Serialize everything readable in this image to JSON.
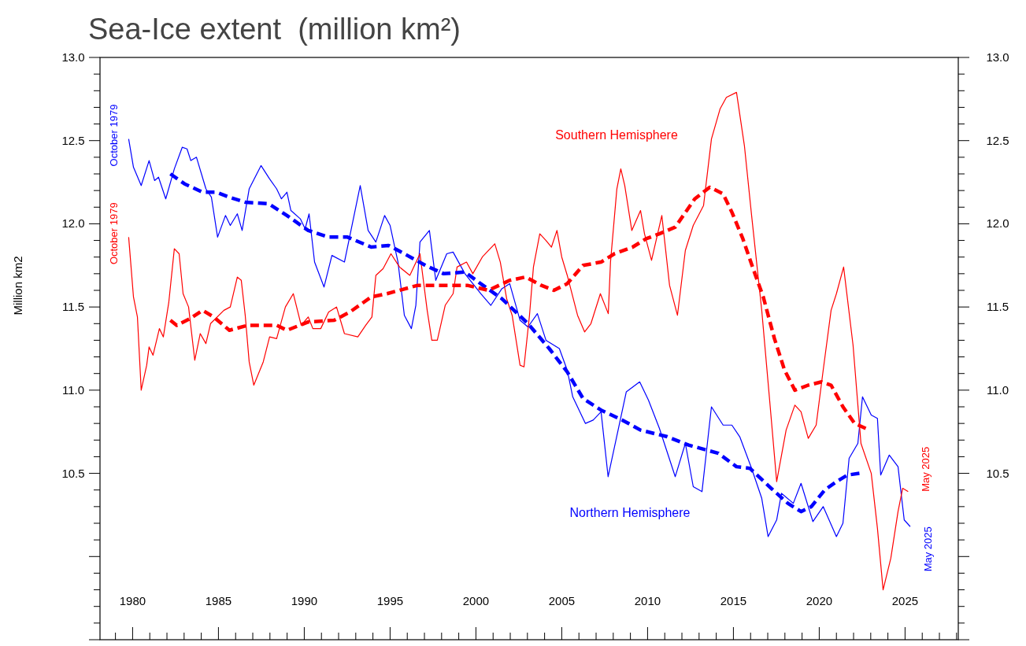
{
  "chart_data": {
    "type": "line",
    "title": "Sea-Ice extent  (million km²)",
    "ylabel": "Million km2",
    "xlim": [
      1978.1,
      2028.1
    ],
    "ylim": [
      9.5,
      13.0
    ],
    "y2lim": [
      9.5,
      13.0
    ],
    "xticks": [
      {
        "value": 1979,
        "label": null
      },
      1980,
      {
        "value": 1981,
        "label": null
      },
      {
        "value": 1982,
        "label": null
      },
      {
        "value": 1983,
        "label": null
      },
      {
        "value": 1984,
        "label": null
      },
      1985,
      {
        "value": 1986,
        "label": null
      },
      {
        "value": 1987,
        "label": null
      },
      {
        "value": 1988,
        "label": null
      },
      {
        "value": 1989,
        "label": null
      },
      1990,
      {
        "value": 1991,
        "label": null
      },
      {
        "value": 1992,
        "label": null
      },
      {
        "value": 1993,
        "label": null
      },
      {
        "value": 1994,
        "label": null
      },
      1995,
      {
        "value": 1996,
        "label": null
      },
      {
        "value": 1997,
        "label": null
      },
      {
        "value": 1998,
        "label": null
      },
      {
        "value": 1999,
        "label": null
      },
      2000,
      {
        "value": 2001,
        "label": null
      },
      {
        "value": 2002,
        "label": null
      },
      {
        "value": 2003,
        "label": null
      },
      {
        "value": 2004,
        "label": null
      },
      2005,
      {
        "value": 2006,
        "label": null
      },
      {
        "value": 2007,
        "label": null
      },
      {
        "value": 2008,
        "label": null
      },
      {
        "value": 2009,
        "label": null
      },
      2010,
      {
        "value": 2011,
        "label": null
      },
      {
        "value": 2012,
        "label": null
      },
      {
        "value": 2013,
        "label": null
      },
      {
        "value": 2014,
        "label": null
      },
      2015,
      {
        "value": 2016,
        "label": null
      },
      {
        "value": 2017,
        "label": null
      },
      {
        "value": 2018,
        "label": null
      },
      {
        "value": 2019,
        "label": null
      },
      2020,
      {
        "value": 2021,
        "label": null
      },
      {
        "value": 2022,
        "label": null
      },
      {
        "value": 2023,
        "label": null
      },
      {
        "value": 2024,
        "label": null
      },
      2025,
      {
        "value": 2026,
        "label": null
      },
      {
        "value": 2027,
        "label": null
      },
      {
        "value": 2028,
        "label": null
      }
    ],
    "yticks": [
      {
        "value": 9.5,
        "label": null
      },
      {
        "value": 9.6,
        "label": null
      },
      {
        "value": 9.7,
        "label": null
      },
      {
        "value": 9.8,
        "label": null
      },
      {
        "value": 9.9,
        "label": null
      },
      {
        "value": 10.0,
        "label": null
      },
      {
        "value": 10.1,
        "label": null
      },
      {
        "value": 10.2,
        "label": null
      },
      {
        "value": 10.3,
        "label": null
      },
      {
        "value": 10.4,
        "label": null
      },
      10.5,
      {
        "value": 10.6,
        "label": null
      },
      {
        "value": 10.7,
        "label": null
      },
      {
        "value": 10.8,
        "label": null
      },
      {
        "value": 10.9,
        "label": null
      },
      {
        "value": 11.0,
        "label": "11.0"
      },
      {
        "value": 11.1,
        "label": null
      },
      {
        "value": 11.2,
        "label": null
      },
      {
        "value": 11.3,
        "label": null
      },
      {
        "value": 11.4,
        "label": null
      },
      11.5,
      {
        "value": 11.6,
        "label": null
      },
      {
        "value": 11.7,
        "label": null
      },
      {
        "value": 11.8,
        "label": null
      },
      {
        "value": 11.9,
        "label": null
      },
      {
        "value": 12.0,
        "label": "12.0"
      },
      {
        "value": 12.1,
        "label": null
      },
      {
        "value": 12.2,
        "label": null
      },
      {
        "value": 12.3,
        "label": null
      },
      {
        "value": 12.4,
        "label": null
      },
      12.5,
      {
        "value": 12.6,
        "label": null
      },
      {
        "value": 12.7,
        "label": null
      },
      {
        "value": 12.8,
        "label": null
      },
      {
        "value": 12.9,
        "label": null
      },
      {
        "value": 13.0,
        "label": "13.0"
      }
    ],
    "y2ticks": [
      {
        "value": 9.5,
        "label": null
      },
      {
        "value": 9.6,
        "label": null
      },
      {
        "value": 9.7,
        "label": null
      },
      {
        "value": 9.8,
        "label": null
      },
      {
        "value": 9.9,
        "label": null
      },
      {
        "value": 10.0,
        "label": null
      },
      {
        "value": 10.1,
        "label": null
      },
      {
        "value": 10.2,
        "label": null
      },
      {
        "value": 10.3,
        "label": null
      },
      {
        "value": 10.4,
        "label": null
      },
      10.5,
      {
        "value": 10.6,
        "label": null
      },
      {
        "value": 10.7,
        "label": null
      },
      {
        "value": 10.8,
        "label": null
      },
      {
        "value": 10.9,
        "label": null
      },
      {
        "value": 11.0,
        "label": "11.0"
      },
      {
        "value": 11.1,
        "label": null
      },
      {
        "value": 11.2,
        "label": null
      },
      {
        "value": 11.3,
        "label": null
      },
      {
        "value": 11.4,
        "label": null
      },
      11.5,
      {
        "value": 11.6,
        "label": null
      },
      {
        "value": 11.7,
        "label": null
      },
      {
        "value": 11.8,
        "label": null
      },
      {
        "value": 11.9,
        "label": null
      },
      {
        "value": 12.0,
        "label": "12.0"
      },
      {
        "value": 12.1,
        "label": null
      },
      {
        "value": 12.2,
        "label": null
      },
      {
        "value": 12.3,
        "label": null
      },
      {
        "value": 12.4,
        "label": null
      },
      12.5,
      {
        "value": 12.6,
        "label": null
      },
      {
        "value": 12.7,
        "label": null
      },
      {
        "value": 12.8,
        "label": null
      },
      {
        "value": 12.9,
        "label": null
      },
      {
        "value": 13.0,
        "label": "13.0"
      }
    ],
    "grid": false,
    "marker": "none",
    "series": [
      {
        "name": "Northern Hemisphere",
        "color": "#0000ff",
        "line_style": "solid",
        "x": [
          1979.77,
          1980.05,
          1980.5,
          1980.96,
          1981.28,
          1981.51,
          1981.93,
          1982.43,
          1982.89,
          1983.17,
          1983.39,
          1983.72,
          1984.27,
          1984.59,
          1984.95,
          1985.41,
          1985.69,
          1986.1,
          1986.38,
          1986.79,
          1987.48,
          1987.98,
          1988.39,
          1988.67,
          1988.99,
          1989.22,
          1989.77,
          1990.05,
          1990.28,
          1990.6,
          1991.15,
          1991.61,
          1992.34,
          1993.26,
          1993.72,
          1994.17,
          1994.68,
          1995.0,
          1995.46,
          1995.83,
          1996.24,
          1996.5,
          1996.74,
          1997.29,
          1997.66,
          1998.3,
          1998.67,
          1999.36,
          2000.28,
          2000.87,
          2001.51,
          2001.97,
          2002.57,
          2003.03,
          2003.58,
          2004.08,
          2004.86,
          2005.32,
          2005.64,
          2006.38,
          2006.83,
          2007.29,
          2007.7,
          2008.76,
          2009.54,
          2010.05,
          2010.69,
          2011.61,
          2012.2,
          2012.66,
          2013.17,
          2013.72,
          2014.4,
          2014.91,
          2015.37,
          2016.06,
          2016.65,
          2017.02,
          2017.52,
          2017.8,
          2018.49,
          2018.94,
          2019.63,
          2020.23,
          2021.0,
          2021.38,
          2021.74,
          2022.25,
          2022.52,
          2023.03,
          2023.39,
          2023.58,
          2024.08,
          2024.59,
          2024.95,
          2025.3
        ],
        "values": [
          12.51,
          12.34,
          12.23,
          12.38,
          12.26,
          12.28,
          12.15,
          12.33,
          12.46,
          12.45,
          12.38,
          12.4,
          12.21,
          12.16,
          11.92,
          12.05,
          11.99,
          12.06,
          11.96,
          12.21,
          12.35,
          12.27,
          12.21,
          12.15,
          12.19,
          12.08,
          12.03,
          11.97,
          12.06,
          11.77,
          11.62,
          11.81,
          11.77,
          12.23,
          11.96,
          11.89,
          12.05,
          11.99,
          11.77,
          11.45,
          11.37,
          11.51,
          11.89,
          11.96,
          11.66,
          11.82,
          11.83,
          11.7,
          11.58,
          11.51,
          11.61,
          11.64,
          11.42,
          11.38,
          11.46,
          11.3,
          11.25,
          11.12,
          10.96,
          10.8,
          10.82,
          10.87,
          10.48,
          10.99,
          11.05,
          10.94,
          10.77,
          10.48,
          10.68,
          10.42,
          10.39,
          10.9,
          10.79,
          10.79,
          10.72,
          10.53,
          10.35,
          10.12,
          10.22,
          10.38,
          10.32,
          10.44,
          10.21,
          10.3,
          10.12,
          10.2,
          10.59,
          10.68,
          10.96,
          10.85,
          10.83,
          10.49,
          10.61,
          10.54,
          10.22,
          10.18
        ]
      },
      {
        "name": "Southern Hemisphere",
        "color": "#ff0000",
        "line_style": "solid",
        "x": [
          1979.77,
          1980.05,
          1980.28,
          1980.5,
          1980.82,
          1980.96,
          1981.19,
          1981.56,
          1981.79,
          1982.11,
          1982.43,
          1982.71,
          1982.94,
          1983.26,
          1983.62,
          1983.94,
          1984.27,
          1984.54,
          1985.32,
          1985.69,
          1986.1,
          1986.33,
          1986.56,
          1986.79,
          1987.06,
          1987.61,
          1987.98,
          1988.39,
          1988.9,
          1989.36,
          1989.82,
          1990.23,
          1990.5,
          1990.96,
          1991.42,
          1991.88,
          1992.34,
          1993.12,
          1993.58,
          1993.94,
          1994.17,
          1994.59,
          1995.05,
          1995.55,
          1996.15,
          1996.74,
          1997.16,
          1997.43,
          1997.75,
          1998.21,
          1998.67,
          1998.9,
          1999.45,
          1999.82,
          2000.37,
          2000.64,
          2001.1,
          2001.42,
          2001.79,
          2002.11,
          2002.57,
          2002.8,
          2003.12,
          2003.35,
          2003.72,
          2004.08,
          2004.4,
          2004.72,
          2005.0,
          2005.32,
          2005.92,
          2006.33,
          2006.7,
          2007.25,
          2007.71,
          2007.84,
          2008.21,
          2008.44,
          2008.67,
          2009.08,
          2009.59,
          2009.82,
          2010.23,
          2010.83,
          2011.28,
          2011.74,
          2012.2,
          2012.66,
          2013.26,
          2013.72,
          2014.22,
          2014.59,
          2015.18,
          2015.64,
          2016.06,
          2016.65,
          2017.11,
          2017.52,
          2018.07,
          2018.58,
          2018.94,
          2019.36,
          2019.82,
          2020.23,
          2020.69,
          2021.0,
          2021.42,
          2021.97,
          2022.43,
          2023.03,
          2023.39,
          2023.72,
          2024.17,
          2024.59,
          2024.86,
          2025.18
        ],
        "values": [
          11.92,
          11.56,
          11.44,
          11.0,
          11.15,
          11.26,
          11.21,
          11.37,
          11.32,
          11.53,
          11.85,
          11.82,
          11.58,
          11.5,
          11.18,
          11.34,
          11.28,
          11.4,
          11.48,
          11.5,
          11.68,
          11.66,
          11.45,
          11.17,
          11.03,
          11.17,
          11.32,
          11.31,
          11.5,
          11.58,
          11.39,
          11.44,
          11.37,
          11.37,
          11.47,
          11.5,
          11.34,
          11.32,
          11.39,
          11.44,
          11.69,
          11.73,
          11.82,
          11.74,
          11.69,
          11.82,
          11.48,
          11.3,
          11.3,
          11.51,
          11.58,
          11.74,
          11.77,
          11.7,
          11.8,
          11.83,
          11.88,
          11.77,
          11.55,
          11.45,
          11.15,
          11.14,
          11.45,
          11.74,
          11.94,
          11.9,
          11.86,
          11.96,
          11.8,
          11.69,
          11.45,
          11.35,
          11.4,
          11.58,
          11.46,
          11.77,
          12.21,
          12.33,
          12.23,
          11.96,
          12.08,
          11.94,
          11.78,
          12.05,
          11.63,
          11.45,
          11.84,
          11.99,
          12.11,
          12.51,
          12.69,
          12.76,
          12.79,
          12.47,
          12.05,
          11.48,
          10.94,
          10.45,
          10.76,
          10.91,
          10.87,
          10.71,
          10.79,
          11.12,
          11.48,
          11.58,
          11.74,
          11.27,
          10.68,
          10.5,
          10.17,
          9.8,
          9.99,
          10.27,
          10.41,
          10.39
        ]
      },
      {
        "color": "#0000ff",
        "line_style": "dashed",
        "x": [
          1982.2,
          1983.03,
          1984.08,
          1984.86,
          1985.64,
          1986.56,
          1987.94,
          1988.99,
          1990.23,
          1991.42,
          1992.52,
          1993.9,
          1994.91,
          1995.83,
          1997.06,
          1998.12,
          1999.36,
          2000.41,
          2001.51,
          2003.03,
          2004.27,
          2005.32,
          2006.24,
          2007.29,
          2008.53,
          2009.59,
          2011.15,
          2012.39,
          2014.13,
          2015.18,
          2015.96,
          2017.2,
          2018.17,
          2018.94,
          2019.54,
          2020.32,
          2021.0,
          2021.65,
          2022.34
        ],
        "values": [
          12.3,
          12.24,
          12.19,
          12.19,
          12.16,
          12.13,
          12.12,
          12.05,
          11.96,
          11.92,
          11.92,
          11.86,
          11.87,
          11.82,
          11.75,
          11.7,
          11.71,
          11.63,
          11.55,
          11.4,
          11.25,
          11.11,
          10.95,
          10.88,
          10.82,
          10.76,
          10.72,
          10.67,
          10.62,
          10.54,
          10.53,
          10.41,
          10.32,
          10.27,
          10.3,
          10.4,
          10.45,
          10.49,
          10.5
        ]
      },
      {
        "color": "#ff0000",
        "line_style": "dashed",
        "x": [
          1982.2,
          1982.57,
          1983.35,
          1984.08,
          1984.72,
          1985.64,
          1986.7,
          1988.39,
          1988.99,
          1990.23,
          1991.74,
          1992.66,
          1993.9,
          1994.82,
          1996.61,
          1998.58,
          1999.5,
          2000.73,
          2001.97,
          2002.89,
          2003.81,
          2004.54,
          2005.32,
          2006.24,
          2007.29,
          2008.07,
          2009.13,
          2009.91,
          2010.69,
          2011.61,
          2012.75,
          2013.62,
          2014.4,
          2014.91,
          2015.55,
          2016.15,
          2016.74,
          2017.39,
          2017.98,
          2018.58,
          2019.36,
          2020.14,
          2020.69,
          2021.38,
          2022.06,
          2022.71
        ],
        "values": [
          11.42,
          11.39,
          11.43,
          11.48,
          11.44,
          11.36,
          11.39,
          11.39,
          11.36,
          11.41,
          11.42,
          11.47,
          11.56,
          11.58,
          11.63,
          11.63,
          11.63,
          11.6,
          11.66,
          11.68,
          11.63,
          11.6,
          11.64,
          11.75,
          11.77,
          11.82,
          11.86,
          11.91,
          11.94,
          11.98,
          12.15,
          12.22,
          12.18,
          12.07,
          11.91,
          11.73,
          11.56,
          11.31,
          11.12,
          11.0,
          11.03,
          11.05,
          11.03,
          10.9,
          10.8,
          10.77
        ]
      }
    ],
    "annotations": [
      {
        "text": "October 1979",
        "x": 1979.77,
        "y": 12.51
      },
      {
        "text": "October 1979",
        "x": 1979.77,
        "y": 11.92
      },
      {
        "text": "May 2025",
        "x": 2025.18,
        "y": 10.39
      },
      {
        "text": "May 2025",
        "x": 2025.3,
        "y": 10.18
      }
    ]
  }
}
